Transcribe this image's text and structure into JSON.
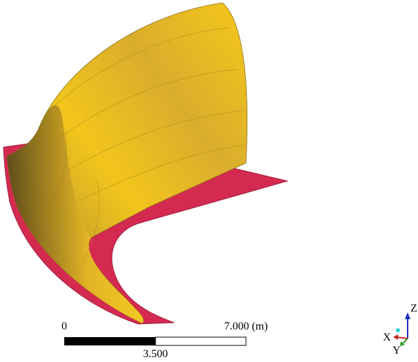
{
  "scale_bar": {
    "start": "0",
    "end": "7.000 (m)",
    "mid": "3.500"
  },
  "axes": {
    "x": "X",
    "y": "Y",
    "z": "Z"
  }
}
